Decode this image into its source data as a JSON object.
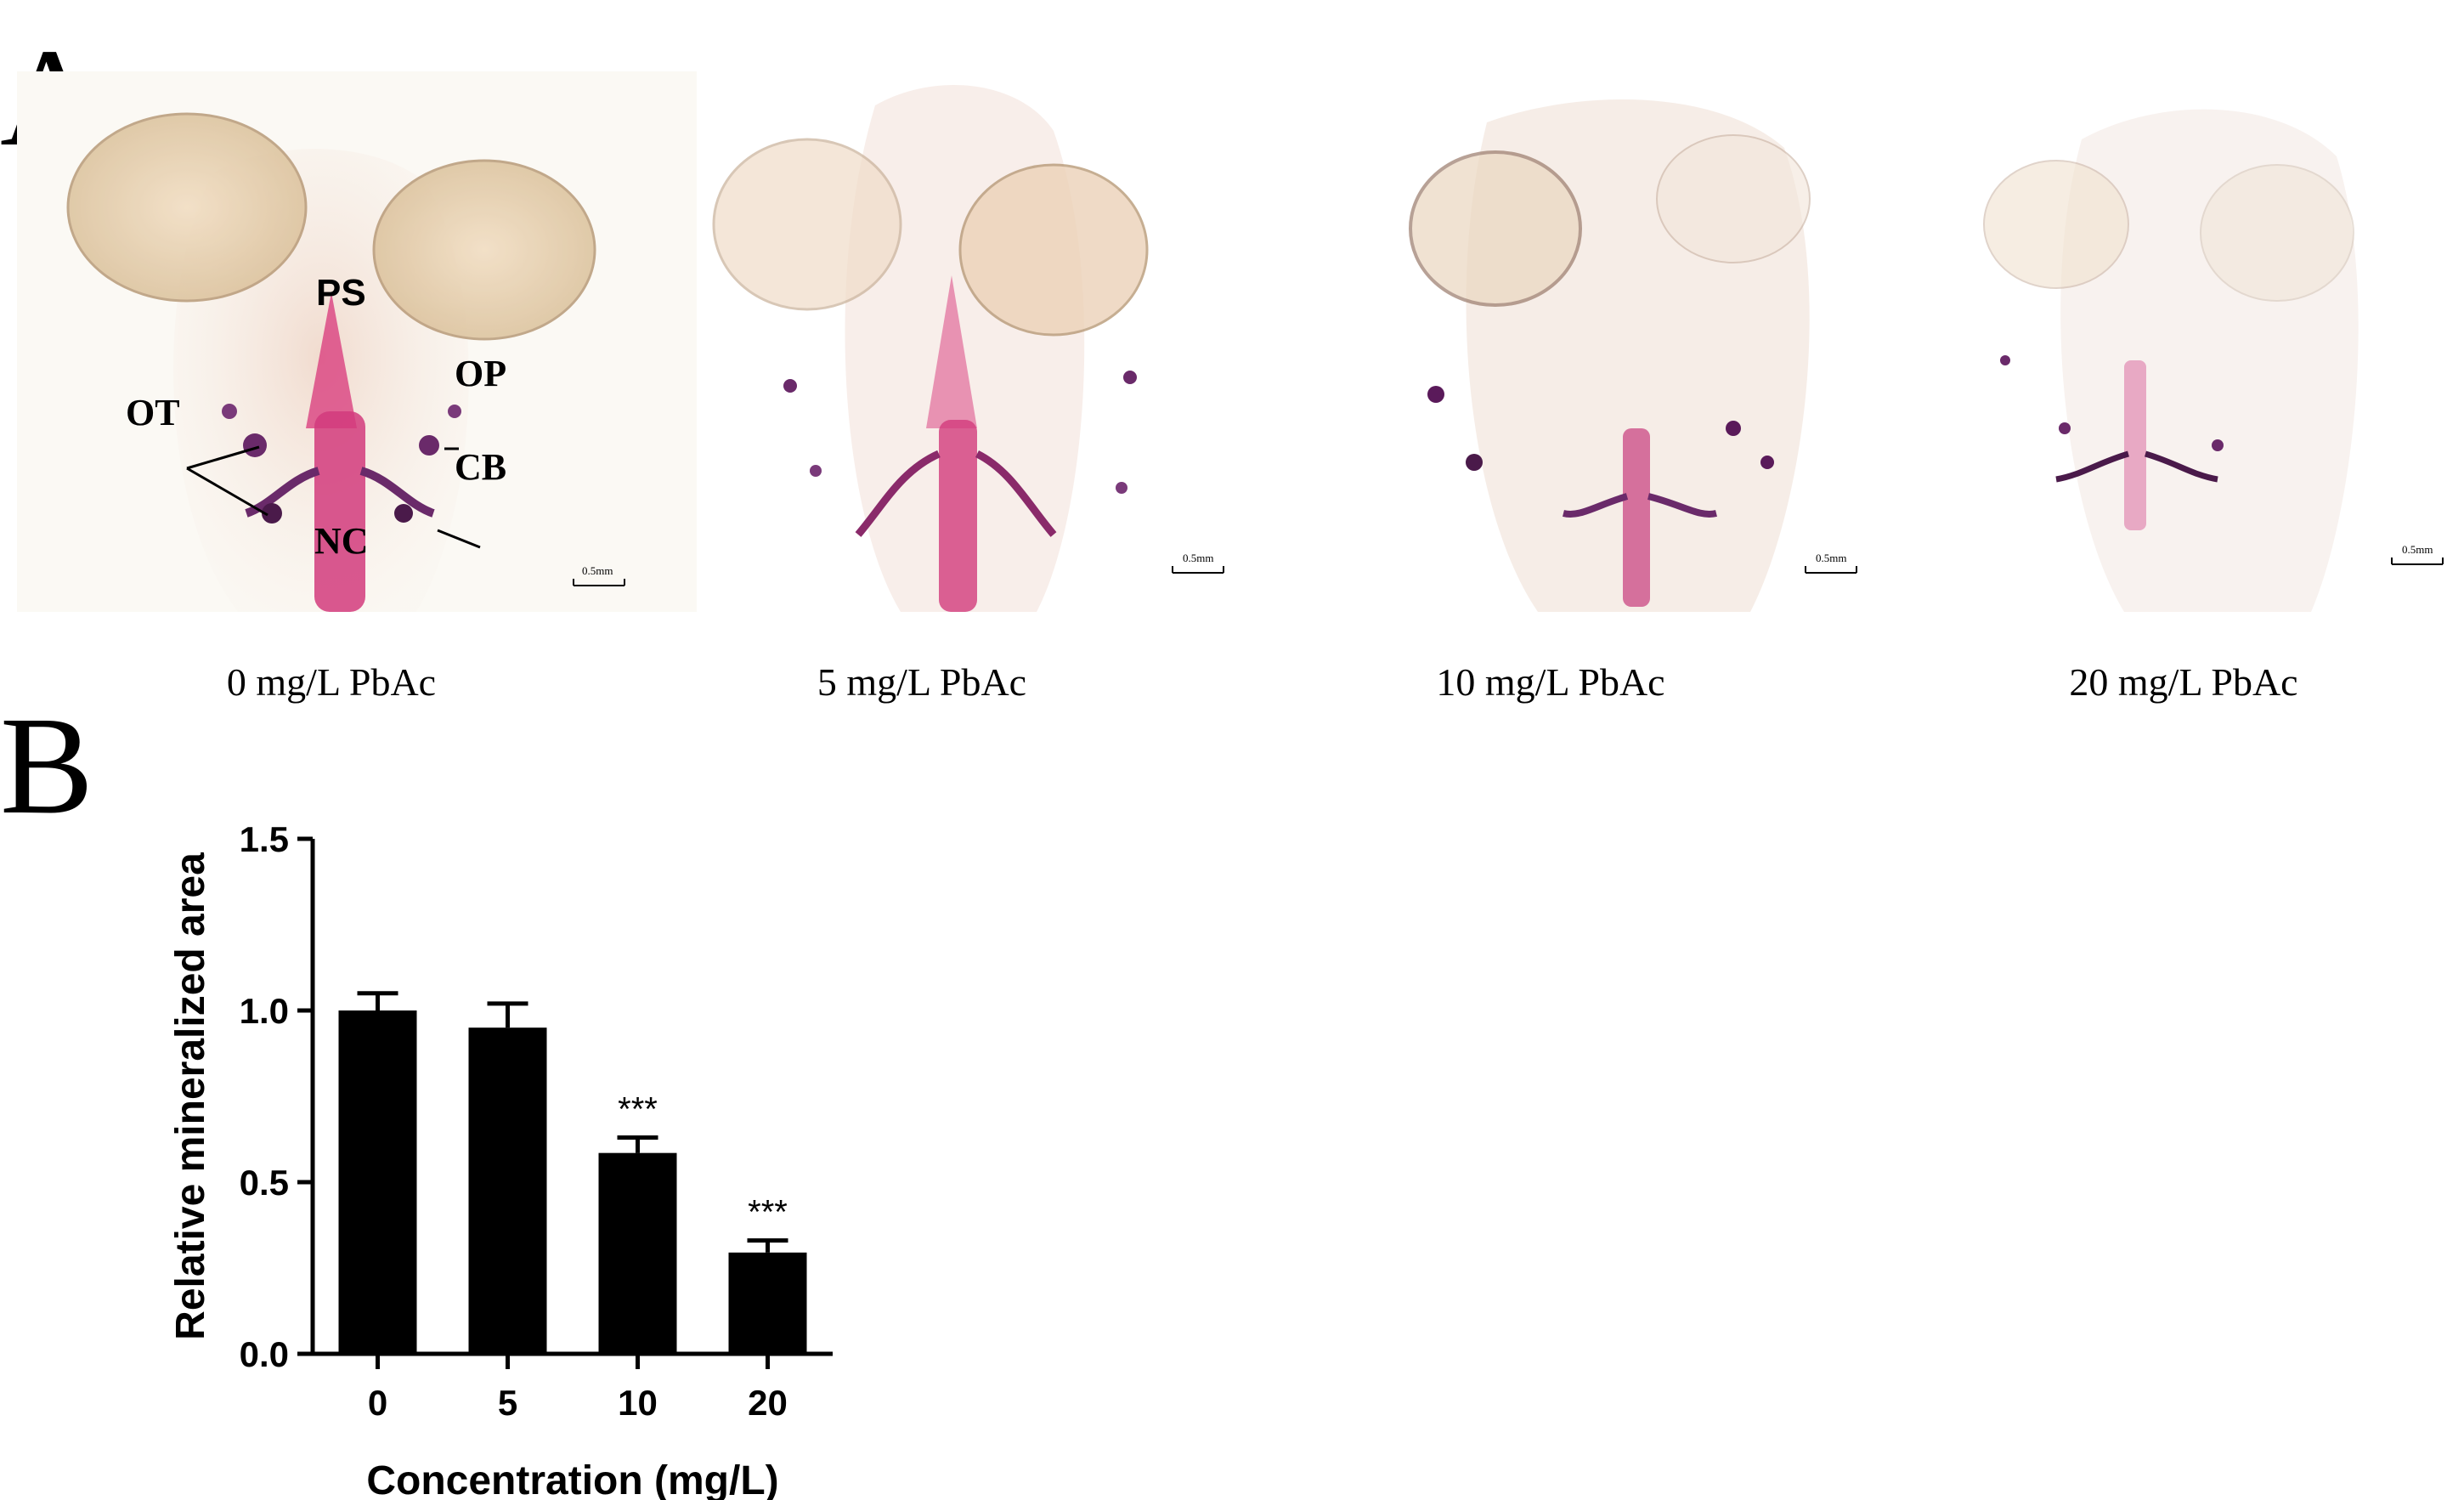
{
  "panel_a": {
    "letter": "A",
    "structure_labels": [
      "PS",
      "OP",
      "OT",
      "CB",
      "NC"
    ],
    "scale_bar_label": "0.5mm",
    "images": [
      {
        "caption": "0 mg/L PbAc"
      },
      {
        "caption": "5 mg/L PbAc"
      },
      {
        "caption": "10 mg/L PbAc"
      },
      {
        "caption": "20 mg/L PbAc"
      }
    ]
  },
  "panel_b": {
    "letter": "B"
  },
  "chart_data": {
    "type": "bar",
    "categories": [
      "0",
      "5",
      "10",
      "20"
    ],
    "values": [
      1.0,
      0.95,
      0.585,
      0.295
    ],
    "errors": [
      0.05,
      0.07,
      0.045,
      0.035
    ],
    "significance": [
      "",
      "",
      "***",
      "***"
    ],
    "xlabel": "Concentration (mg/L)",
    "ylabel": "Relative mineralized area",
    "ylim": [
      0,
      1.5
    ],
    "yticks": [
      "0.0",
      "0.5",
      "1.0",
      "1.5"
    ],
    "bar_color": "#000000",
    "grid": false,
    "legend": "none"
  },
  "colors": {
    "stain_magenta": "#d8357a",
    "stain_purple": "#6a2a6a",
    "tissue_tan": "#e8d2b0",
    "background": "#ffffff"
  }
}
